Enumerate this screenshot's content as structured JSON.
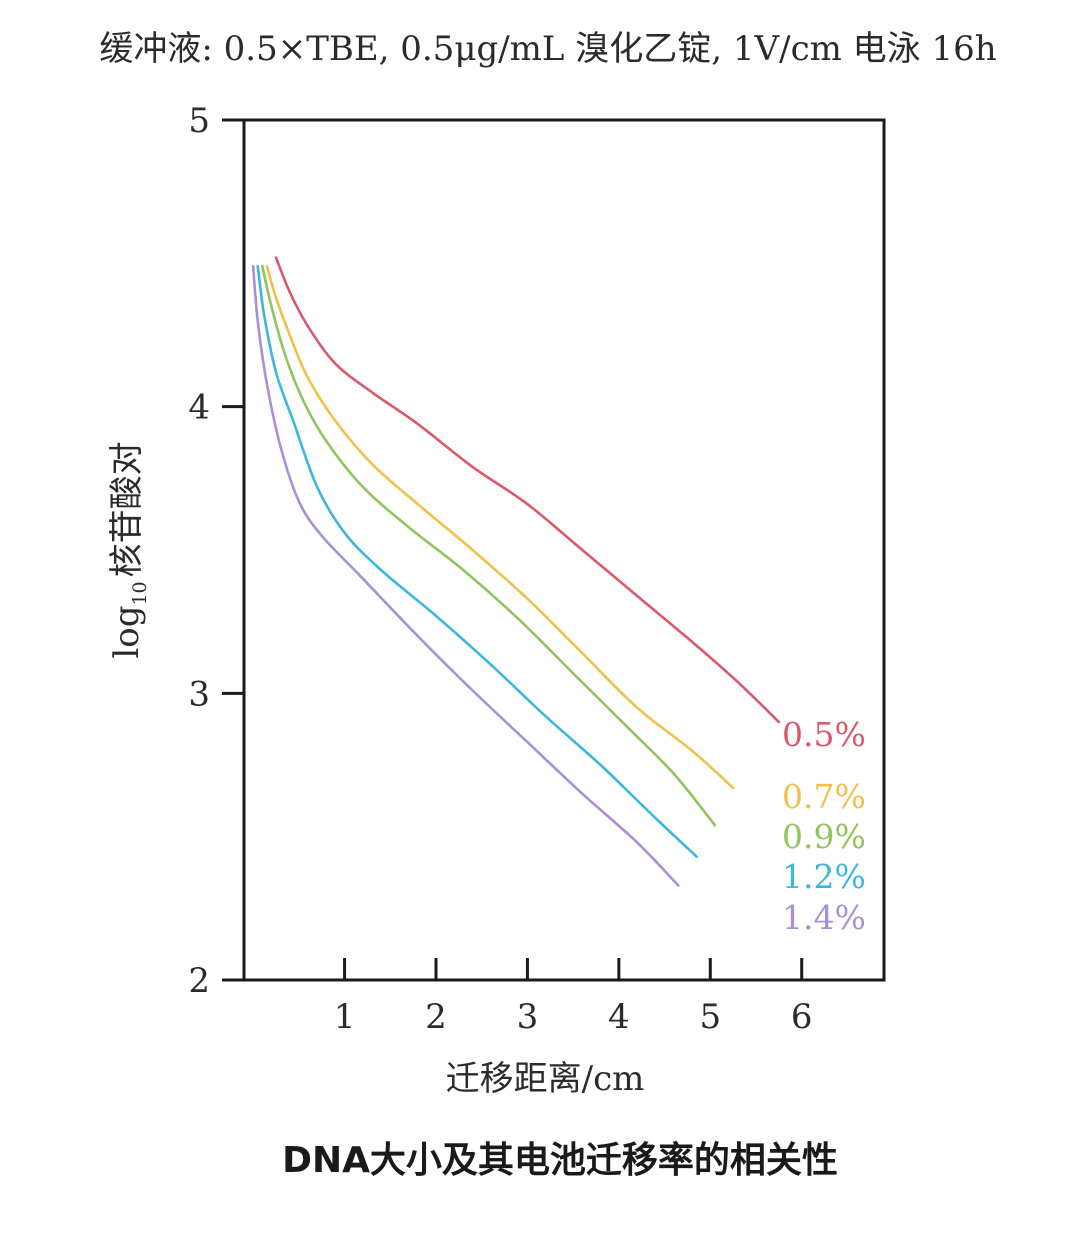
{
  "chart_data": {
    "type": "line",
    "subtitle": "缓冲液: 0.5×TBE, 0.5μg/mL 溴化乙锭, 1V/cm 电泳 16h",
    "title": "DNA大小及其电池迁移率的相关性",
    "xlabel": "迁移距离/cm",
    "ylabel": {
      "prefix": "log",
      "subscript": "10",
      "suffix": "核苷酸对"
    },
    "xlim": [
      -0.1,
      6.9
    ],
    "ylim": [
      2,
      5
    ],
    "x_ticks": [
      "1",
      "2",
      "3",
      "4",
      "5",
      "6"
    ],
    "y_ticks": [
      "2",
      "3",
      "4",
      "5"
    ],
    "grid": false,
    "legend_position": "inline-right",
    "series": [
      {
        "name": "0.5%",
        "color": "#d9586a",
        "points": [
          [
            0.25,
            4.52
          ],
          [
            0.4,
            4.4
          ],
          [
            0.6,
            4.28
          ],
          [
            0.9,
            4.15
          ],
          [
            1.3,
            4.05
          ],
          [
            1.8,
            3.94
          ],
          [
            2.4,
            3.79
          ],
          [
            3.0,
            3.66
          ],
          [
            3.6,
            3.5
          ],
          [
            4.2,
            3.34
          ],
          [
            4.8,
            3.18
          ],
          [
            5.3,
            3.04
          ],
          [
            5.75,
            2.9
          ]
        ]
      },
      {
        "name": "0.7%",
        "color": "#f2c04a",
        "points": [
          [
            0.15,
            4.49
          ],
          [
            0.25,
            4.38
          ],
          [
            0.4,
            4.25
          ],
          [
            0.6,
            4.1
          ],
          [
            0.9,
            3.95
          ],
          [
            1.3,
            3.8
          ],
          [
            1.8,
            3.66
          ],
          [
            2.4,
            3.5
          ],
          [
            3.0,
            3.33
          ],
          [
            3.6,
            3.14
          ],
          [
            4.2,
            2.95
          ],
          [
            4.8,
            2.8
          ],
          [
            5.25,
            2.67
          ]
        ]
      },
      {
        "name": "0.9%",
        "color": "#90c45d",
        "points": [
          [
            0.1,
            4.49
          ],
          [
            0.2,
            4.35
          ],
          [
            0.35,
            4.18
          ],
          [
            0.55,
            4.02
          ],
          [
            0.8,
            3.88
          ],
          [
            1.2,
            3.72
          ],
          [
            1.7,
            3.58
          ],
          [
            2.3,
            3.43
          ],
          [
            2.9,
            3.26
          ],
          [
            3.5,
            3.07
          ],
          [
            4.1,
            2.88
          ],
          [
            4.6,
            2.72
          ],
          [
            5.05,
            2.54
          ]
        ]
      },
      {
        "name": "1.2%",
        "color": "#3cb6e0",
        "points": [
          [
            0.05,
            4.49
          ],
          [
            0.12,
            4.32
          ],
          [
            0.25,
            4.12
          ],
          [
            0.45,
            3.94
          ],
          [
            0.7,
            3.72
          ],
          [
            1.0,
            3.56
          ],
          [
            1.4,
            3.43
          ],
          [
            2.0,
            3.27
          ],
          [
            2.6,
            3.1
          ],
          [
            3.2,
            2.92
          ],
          [
            3.8,
            2.75
          ],
          [
            4.35,
            2.58
          ],
          [
            4.85,
            2.43
          ]
        ]
      },
      {
        "name": "1.4%",
        "color": "#a98fd6",
        "points": [
          [
            0.0,
            4.49
          ],
          [
            0.05,
            4.3
          ],
          [
            0.15,
            4.08
          ],
          [
            0.3,
            3.86
          ],
          [
            0.5,
            3.67
          ],
          [
            0.75,
            3.55
          ],
          [
            1.2,
            3.4
          ],
          [
            1.8,
            3.2
          ],
          [
            2.4,
            3.01
          ],
          [
            3.0,
            2.83
          ],
          [
            3.6,
            2.65
          ],
          [
            4.2,
            2.48
          ],
          [
            4.65,
            2.33
          ]
        ]
      }
    ]
  }
}
